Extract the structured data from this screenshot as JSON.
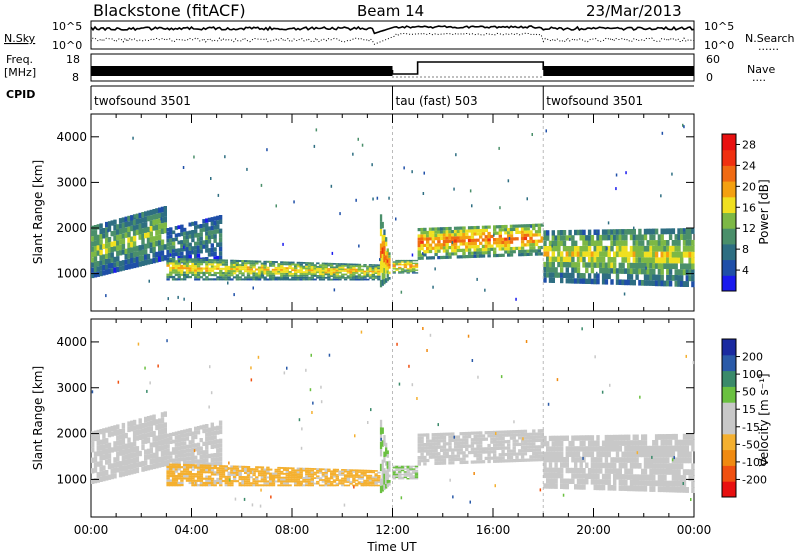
{
  "header": {
    "radar": "Blackstone (fitACF)",
    "beam": "Beam 14",
    "date": "23/Mar/2013"
  },
  "strip_labels": {
    "nsky": "N.Sky",
    "nsearch": "N.Search",
    "freq_line1": "Freq.",
    "freq_line2": "[MHz]",
    "nave": "Nave",
    "cpid": "CPID",
    "noise_ticks": [
      "10^5",
      "10^0"
    ],
    "freq_ticks": [
      "18",
      "8"
    ],
    "nave_ticks": [
      "60",
      "0"
    ]
  },
  "cpid_segments": [
    {
      "label": "twofsound 3501",
      "start_hour": 0,
      "end_hour": 12
    },
    {
      "label": "tau (fast) 503",
      "start_hour": 12,
      "end_hour": 18
    },
    {
      "label": "twofsound 3501",
      "start_hour": 18,
      "end_hour": 24
    }
  ],
  "colors": {
    "power_scale": [
      "#1a1aee",
      "#1f4fa8",
      "#2e6e82",
      "#4a8f6a",
      "#7db845",
      "#f0e020",
      "#f4a010",
      "#f06a12",
      "#f03010",
      "#e81010"
    ],
    "velocity_scale": [
      "#e81010",
      "#f05010",
      "#f08a10",
      "#f4b030",
      "#c8c8c8",
      "#c8c8c8",
      "#6ac040",
      "#3a8a6a",
      "#2a5aa8",
      "#1a2aa0"
    ]
  },
  "chart_data": [
    {
      "type": "heatmap",
      "name": "power",
      "title": "Blackstone (fitACF)  Beam 14  23/Mar/2013",
      "xlabel": "Time UT",
      "ylabel": "Slant Range [km]",
      "x_ticks": [
        "00:00",
        "04:00",
        "08:00",
        "12:00",
        "16:00",
        "20:00",
        "00:00"
      ],
      "y_ticks": [
        1000,
        2000,
        3000,
        4000
      ],
      "xlim_hours": [
        0,
        24
      ],
      "ylim_km": [
        180,
        4500
      ],
      "colorbar_label": "Power [dB]",
      "colorbar_ticks": [
        4,
        8,
        12,
        16,
        20,
        24,
        28
      ],
      "colorbar_range": [
        0,
        30
      ],
      "echo_bands": [
        {
          "t0": 0.0,
          "t1": 3.0,
          "r0_start": 900,
          "r1_start": 2050,
          "r0_end": 1300,
          "r1_end": 2500,
          "core": 14
        },
        {
          "t0": 3.0,
          "t1": 5.2,
          "r0_start": 1200,
          "r1_start": 2000,
          "r0_end": 1300,
          "r1_end": 2300,
          "core": 10
        },
        {
          "t0": 3.0,
          "t1": 11.5,
          "r0_start": 850,
          "r1_start": 1350,
          "r0_end": 850,
          "r1_end": 1200,
          "core": 18
        },
        {
          "t0": 11.5,
          "t1": 11.9,
          "r0_start": 700,
          "r1_start": 2300,
          "r0_end": 900,
          "r1_end": 1300,
          "core": 22
        },
        {
          "t0": 12.0,
          "t1": 13.0,
          "r0_start": 1000,
          "r1_start": 1300,
          "r0_end": 1000,
          "r1_end": 1300,
          "core": 20
        },
        {
          "t0": 13.0,
          "t1": 18.0,
          "r0_start": 1300,
          "r1_start": 2000,
          "r0_end": 1400,
          "r1_end": 2100,
          "core": 22
        },
        {
          "t0": 18.0,
          "t1": 24.0,
          "r0_start": 800,
          "r1_start": 1950,
          "r0_end": 700,
          "r1_end": 2000,
          "core": 16
        }
      ]
    },
    {
      "type": "heatmap",
      "name": "velocity",
      "xlabel": "Time UT",
      "ylabel": "Slant Range [km]",
      "x_ticks": [
        "00:00",
        "04:00",
        "08:00",
        "12:00",
        "16:00",
        "20:00",
        "00:00"
      ],
      "y_ticks": [
        1000,
        2000,
        3000,
        4000
      ],
      "xlim_hours": [
        0,
        24
      ],
      "ylim_km": [
        180,
        4500
      ],
      "colorbar_label": "Velocity [m s⁻¹]",
      "colorbar_ticks": [
        200,
        100,
        50,
        15,
        -15,
        -50,
        -100,
        -200
      ],
      "colorbar_range": [
        -250,
        250
      ],
      "echo_bands": [
        {
          "t0": 0.0,
          "t1": 3.0,
          "r0_start": 900,
          "r1_start": 2050,
          "r0_end": 1300,
          "r1_end": 2500,
          "vel": 0
        },
        {
          "t0": 3.0,
          "t1": 5.2,
          "r0_start": 1200,
          "r1_start": 2000,
          "r0_end": 1300,
          "r1_end": 2300,
          "vel": 0
        },
        {
          "t0": 3.0,
          "t1": 11.5,
          "r0_start": 850,
          "r1_start": 1350,
          "r0_end": 850,
          "r1_end": 1200,
          "vel": -70
        },
        {
          "t0": 11.5,
          "t1": 11.9,
          "r0_start": 700,
          "r1_start": 2300,
          "r0_end": 900,
          "r1_end": 1300,
          "vel": 40
        },
        {
          "t0": 12.0,
          "t1": 13.0,
          "r0_start": 1000,
          "r1_start": 1300,
          "r0_end": 1000,
          "r1_end": 1300,
          "vel": 40
        },
        {
          "t0": 13.0,
          "t1": 18.0,
          "r0_start": 1300,
          "r1_start": 2000,
          "r0_end": 1400,
          "r1_end": 2100,
          "vel": 0
        },
        {
          "t0": 18.0,
          "t1": 24.0,
          "r0_start": 800,
          "r1_start": 1950,
          "r0_end": 700,
          "r1_end": 2000,
          "vel": 0
        }
      ]
    }
  ]
}
